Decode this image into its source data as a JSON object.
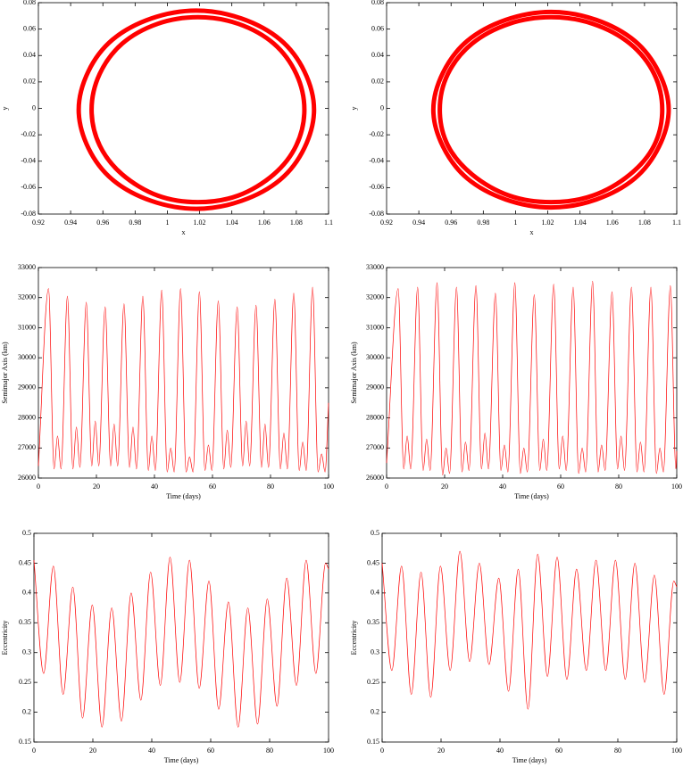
{
  "chart_data": [
    {
      "type": "line",
      "xlabel": "x",
      "ylabel": "y",
      "color": "#ff0000",
      "x": [
        1.091,
        1.085,
        1.07,
        1.046,
        1.018,
        0.99,
        0.966,
        0.951,
        0.945,
        0.951,
        0.966,
        0.99,
        1.018,
        1.046,
        1.07,
        1.085,
        1.091,
        null,
        1.085,
        1.08,
        1.066,
        1.044,
        1.019,
        0.994,
        0.972,
        0.958,
        0.953,
        0.958,
        0.972,
        0.994,
        1.019,
        1.044,
        1.066,
        1.08,
        1.085
      ],
      "values": [
        -0.001,
        0.028,
        0.052,
        0.068,
        0.074,
        0.068,
        0.052,
        0.028,
        -0.001,
        -0.03,
        -0.054,
        -0.07,
        -0.076,
        -0.07,
        -0.054,
        -0.03,
        -0.001,
        null,
        -0.001,
        0.026,
        0.049,
        0.064,
        0.069,
        0.064,
        0.049,
        0.026,
        -0.001,
        -0.028,
        -0.05,
        -0.066,
        -0.071,
        -0.066,
        -0.05,
        -0.028,
        -0.001
      ],
      "xlim": [
        0.92,
        1.1
      ],
      "xticks": [
        0.92,
        0.94,
        0.96,
        0.98,
        1,
        1.02,
        1.04,
        1.06,
        1.08,
        1.1
      ],
      "ylim": [
        -0.08,
        0.08
      ],
      "yticks": [
        -0.08,
        -0.06,
        -0.04,
        -0.02,
        0,
        0.02,
        0.04,
        0.06,
        0.08
      ]
    },
    {
      "type": "line",
      "xlabel": "x",
      "ylabel": "y",
      "color": "#ff0000",
      "x": [
        1.095,
        1.089,
        1.074,
        1.05,
        1.022,
        0.994,
        0.97,
        0.955,
        0.949,
        0.955,
        0.97,
        0.994,
        1.022,
        1.05,
        1.074,
        1.089,
        1.095,
        null,
        1.091,
        1.086,
        1.071,
        1.048,
        1.022,
        0.996,
        0.973,
        0.958,
        0.953,
        0.958,
        0.973,
        0.996,
        1.022,
        1.048,
        1.071,
        1.086,
        1.091
      ],
      "values": [
        -0.001,
        0.027,
        0.051,
        0.067,
        0.073,
        0.067,
        0.051,
        0.027,
        -0.001,
        -0.029,
        -0.053,
        -0.069,
        -0.075,
        -0.069,
        -0.053,
        -0.029,
        -0.001,
        null,
        -0.001,
        0.026,
        0.049,
        0.064,
        0.069,
        0.064,
        0.049,
        0.026,
        -0.001,
        -0.028,
        -0.05,
        -0.066,
        -0.071,
        -0.066,
        -0.05,
        -0.028,
        -0.001
      ],
      "xlim": [
        0.92,
        1.1
      ],
      "xticks": [
        0.92,
        0.94,
        0.96,
        0.98,
        1,
        1.02,
        1.04,
        1.06,
        1.08,
        1.1
      ],
      "ylim": [
        -0.08,
        0.08
      ],
      "yticks": [
        -0.08,
        -0.06,
        -0.04,
        -0.02,
        0,
        0.02,
        0.04,
        0.06,
        0.08
      ]
    },
    {
      "type": "line",
      "xlabel": "Time (days)",
      "ylabel": "Semimajor Axis (km)",
      "color": "#ff0000",
      "x": [
        0,
        3.5,
        5.4,
        6.6,
        7.8,
        10,
        11.9,
        13.1,
        14.3,
        16.5,
        18.4,
        19.6,
        20.8,
        23,
        24.9,
        26.1,
        27.3,
        29.5,
        31.4,
        32.6,
        33.8,
        36,
        37.9,
        39.1,
        40.3,
        42.5,
        44.4,
        45.6,
        46.8,
        49,
        50.9,
        52.1,
        53.3,
        55.5,
        57.4,
        58.6,
        59.8,
        62,
        63.9,
        65.1,
        66.3,
        68.5,
        70.4,
        71.6,
        72.8,
        75,
        76.9,
        78.1,
        79.3,
        81.5,
        83.4,
        84.6,
        85.8,
        88,
        89.9,
        91.1,
        92.3,
        94.5,
        96.4,
        97.6,
        98.8,
        100
      ],
      "values": [
        26400,
        32300,
        26300,
        27400,
        26300,
        32050,
        26300,
        27700,
        26350,
        31850,
        26400,
        27900,
        26400,
        31700,
        26400,
        27800,
        26400,
        31800,
        26350,
        27700,
        26300,
        32050,
        26250,
        27400,
        26250,
        32250,
        26200,
        27000,
        26200,
        32300,
        26200,
        26700,
        26200,
        32200,
        26250,
        27100,
        26250,
        31900,
        26300,
        27600,
        26350,
        31700,
        26400,
        27900,
        26400,
        31750,
        26350,
        27800,
        26350,
        31950,
        26300,
        27500,
        26300,
        32150,
        26250,
        27200,
        26250,
        32350,
        26200,
        26800,
        26200,
        28500
      ],
      "xlim": [
        0,
        100
      ],
      "xticks": [
        0,
        20,
        40,
        60,
        80,
        100
      ],
      "ylim": [
        26000,
        33000
      ],
      "yticks": [
        26000,
        27000,
        28000,
        29000,
        30000,
        31000,
        32000,
        33000
      ]
    },
    {
      "type": "line",
      "xlabel": "Time (days)",
      "ylabel": "Semimajor Axis (km)",
      "color": "#ff0000",
      "x": [
        0,
        4,
        5.9,
        7.1,
        8.3,
        10.7,
        12.6,
        13.8,
        15,
        17.4,
        19.3,
        20.5,
        21.7,
        24.1,
        26,
        27.2,
        28.4,
        30.8,
        32.7,
        33.9,
        35.1,
        37.5,
        39.4,
        40.6,
        41.8,
        44.2,
        46.1,
        47.3,
        48.5,
        50.9,
        52.8,
        54,
        55.2,
        57.6,
        59.5,
        60.7,
        61.9,
        64.3,
        66.2,
        67.4,
        68.6,
        71,
        72.9,
        74.1,
        75.3,
        77.7,
        79.6,
        80.8,
        82,
        84.4,
        86.3,
        87.5,
        88.7,
        91.1,
        93,
        94.2,
        95.4,
        97.8,
        99.7,
        100
      ],
      "values": [
        26500,
        32300,
        26300,
        27400,
        26300,
        32350,
        26250,
        27300,
        26250,
        32500,
        26100,
        27000,
        26150,
        32350,
        26200,
        27200,
        26250,
        32400,
        26300,
        27500,
        26300,
        32150,
        26250,
        27100,
        26200,
        32500,
        26150,
        27000,
        26200,
        32100,
        26250,
        27300,
        26250,
        32450,
        26300,
        27400,
        26250,
        32350,
        26150,
        27000,
        26200,
        32550,
        26200,
        27100,
        26250,
        32200,
        26300,
        27400,
        26250,
        32350,
        26200,
        27200,
        26200,
        32350,
        26150,
        27000,
        26200,
        32400,
        26300,
        26900
      ],
      "xlim": [
        0,
        100
      ],
      "xticks": [
        0,
        20,
        40,
        60,
        80,
        100
      ],
      "ylim": [
        26000,
        33000
      ],
      "yticks": [
        26000,
        27000,
        28000,
        29000,
        30000,
        31000,
        32000,
        33000
      ]
    },
    {
      "type": "line",
      "xlabel": "Time (days)",
      "ylabel": "Eccentricity",
      "color": "#ff0000",
      "x": [
        0,
        3.3,
        6.6,
        9.9,
        13.2,
        16.5,
        19.8,
        23.1,
        26.4,
        29.7,
        33,
        36.3,
        39.6,
        42.9,
        46.2,
        49.5,
        52.8,
        56.1,
        59.4,
        62.7,
        66,
        69.3,
        72.6,
        75.9,
        79.2,
        82.5,
        85.8,
        89.1,
        92.4,
        95.7,
        99,
        100
      ],
      "values": [
        0.455,
        0.265,
        0.445,
        0.23,
        0.41,
        0.19,
        0.38,
        0.175,
        0.375,
        0.185,
        0.4,
        0.22,
        0.435,
        0.245,
        0.46,
        0.25,
        0.455,
        0.24,
        0.42,
        0.205,
        0.385,
        0.175,
        0.375,
        0.18,
        0.39,
        0.21,
        0.425,
        0.245,
        0.455,
        0.265,
        0.45,
        0.44
      ],
      "xlim": [
        0,
        100
      ],
      "xticks": [
        0,
        20,
        40,
        60,
        80,
        100
      ],
      "ylim": [
        0.15,
        0.5
      ],
      "yticks": [
        0.15,
        0.2,
        0.25,
        0.3,
        0.35,
        0.4,
        0.45,
        0.5
      ]
    },
    {
      "type": "line",
      "xlabel": "Time (days)",
      "ylabel": "Eccentricity",
      "color": "#ff0000",
      "x": [
        0,
        3.3,
        6.6,
        9.9,
        13.2,
        16.5,
        19.8,
        23.1,
        26.4,
        29.7,
        33,
        36.3,
        39.6,
        42.9,
        46.2,
        49.5,
        52.8,
        56.1,
        59.4,
        62.7,
        66,
        69.3,
        72.6,
        75.9,
        79.2,
        82.5,
        85.8,
        89.1,
        92.4,
        95.7,
        99,
        100
      ],
      "values": [
        0.45,
        0.27,
        0.445,
        0.23,
        0.435,
        0.225,
        0.445,
        0.27,
        0.47,
        0.285,
        0.45,
        0.28,
        0.425,
        0.235,
        0.44,
        0.205,
        0.465,
        0.26,
        0.46,
        0.255,
        0.44,
        0.27,
        0.455,
        0.27,
        0.455,
        0.255,
        0.45,
        0.25,
        0.43,
        0.23,
        0.42,
        0.41
      ],
      "xlim": [
        0,
        100
      ],
      "xticks": [
        0,
        20,
        40,
        60,
        80,
        100
      ],
      "ylim": [
        0.15,
        0.5
      ],
      "yticks": [
        0.15,
        0.2,
        0.25,
        0.3,
        0.35,
        0.4,
        0.45,
        0.5
      ]
    }
  ]
}
